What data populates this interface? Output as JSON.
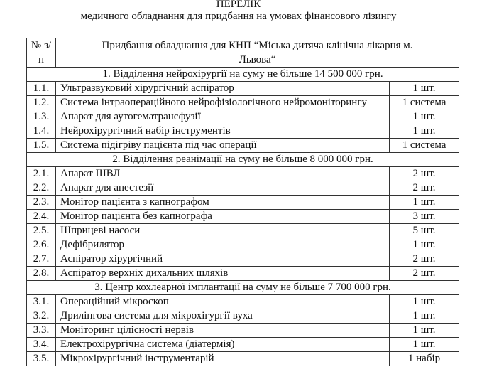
{
  "document": {
    "title": "ПЕРЕЛІК",
    "subtitle": "медичного обладнання для придбання на умовах фінансового лізингу"
  },
  "table": {
    "header": {
      "num": "№ з/п",
      "name": "Придбання обладнання для КНП “Міська дитяча клінічна лікарня м. Львова“"
    },
    "sections": [
      {
        "title": "1.  Відділення нейрохірургії на суму не більше 14 500 000 грн.",
        "items": [
          {
            "num": "1.1.",
            "name": "Ультразвуковий хірургічний аспіратор",
            "qty": "1 шт."
          },
          {
            "num": "1.2.",
            "name": "Система інтраопераційного нейрофізіологічного нейромоніторингу",
            "qty": "1 система"
          },
          {
            "num": "1.3.",
            "name": "Апарат для аутогематрансфузії",
            "qty": "1 шт."
          },
          {
            "num": "1.4.",
            "name": "Нейрохірургічний набір інструментів",
            "qty": "1 шт."
          },
          {
            "num": "1.5.",
            "name": "Система підігріву пацієнта під час операції",
            "qty": "1 система"
          }
        ]
      },
      {
        "title": "2.  Відділення реанімації на суму не більше 8 000 000 грн.",
        "items": [
          {
            "num": "2.1.",
            "name": "Апарат ШВЛ",
            "qty": "2 шт."
          },
          {
            "num": "2.2.",
            "name": "Апарат для анестезії",
            "qty": "2 шт."
          },
          {
            "num": "2.3.",
            "name": "Монітор пацієнта з капнографом",
            "qty": "1 шт."
          },
          {
            "num": "2.4.",
            "name": "Монітор пацієнта без капнографа",
            "qty": "3 шт."
          },
          {
            "num": "2.5.",
            "name": "Шприцеві насоси",
            "qty": "5 шт."
          },
          {
            "num": "2.6.",
            "name": "Дефібрилятор",
            "qty": "1 шт."
          },
          {
            "num": "2.7.",
            "name": "Аспіратор хірургічний",
            "qty": "2 шт."
          },
          {
            "num": "2.8.",
            "name": "Аспіратор верхніх дихальних шляхів",
            "qty": "2 шт."
          }
        ]
      },
      {
        "title": "3.  Центр кохлеарної імплантації на суму не більше 7 700 000 грн.",
        "items": [
          {
            "num": "3.1.",
            "name": "Операційний мікроскоп",
            "qty": "1 шт."
          },
          {
            "num": "3.2.",
            "name": "Дрилінгова система для мікрохігургії вуха",
            "qty": "1 шт."
          },
          {
            "num": "3.3.",
            "name": "Моніторинг цілісності нервів",
            "qty": "1 шт."
          },
          {
            "num": "3.4.",
            "name": "Електрохірургічна система (діатермія)",
            "qty": "1 шт."
          },
          {
            "num": "3.5.",
            "name": "Мікрохірургічний інструментарій",
            "qty": "1 набір"
          }
        ]
      }
    ]
  }
}
